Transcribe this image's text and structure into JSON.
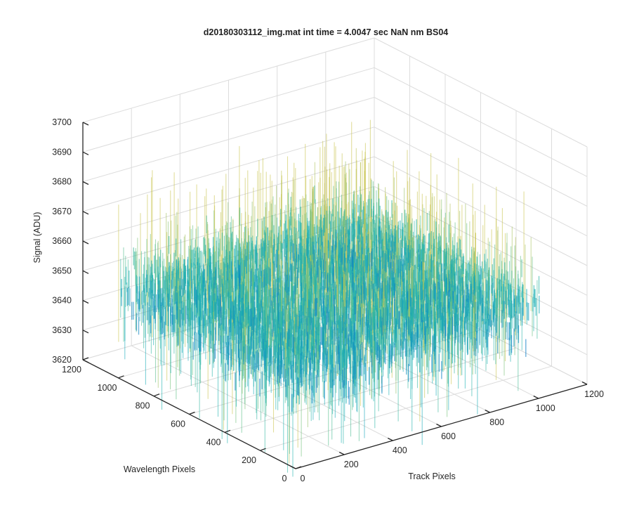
{
  "chart_data": {
    "type": "surface",
    "title": "d20180303112_img.mat int time = 4.0047 sec  NaN nm BS04",
    "xlabel": "Track Pixels",
    "ylabel": "Wavelength Pixels",
    "zlabel": "Signal (ADU)",
    "xlim": [
      0,
      1200
    ],
    "ylim": [
      0,
      1200
    ],
    "zlim": [
      3620,
      3700
    ],
    "x_ticks": [
      "0",
      "200",
      "400",
      "600",
      "800",
      "1000",
      "1200"
    ],
    "y_ticks": [
      "0",
      "200",
      "400",
      "600",
      "800",
      "1000",
      "1200"
    ],
    "z_ticks": [
      "3620",
      "3630",
      "3640",
      "3650",
      "3660",
      "3670",
      "3680",
      "3690",
      "3700"
    ],
    "surface": {
      "x_range": [
        0,
        1024
      ],
      "y_range": [
        0,
        1024
      ],
      "z_mean": 3650,
      "z_noise_core": 10,
      "z_noise_spikes": [
        3615,
        3690
      ],
      "colormap": "parula"
    },
    "grid": true,
    "colors": {
      "low": "#0a72c8",
      "mid": "#16b0b5",
      "high": "#c8c24c",
      "axis": "#262626",
      "grid": "#dcdcdc"
    }
  }
}
